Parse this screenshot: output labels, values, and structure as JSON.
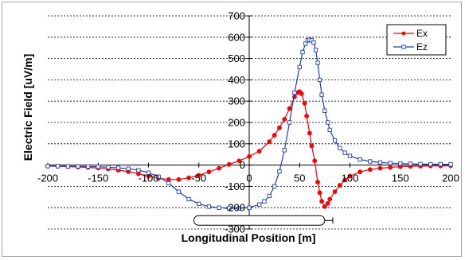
{
  "chart_data": {
    "type": "line",
    "xlabel": "Longitudinal Position [m]",
    "ylabel": "Electric Field [uV/m]",
    "xlim": [
      -200,
      200
    ],
    "ylim": [
      -300,
      700
    ],
    "x_ticks": [
      "-200",
      "-150",
      "-100",
      "-50",
      "0",
      "50",
      "100",
      "150",
      "200"
    ],
    "y_ticks": [
      "-300",
      "-200",
      "-100",
      "0",
      "100",
      "200",
      "300",
      "400",
      "500",
      "600",
      "700"
    ],
    "grid": "horizontal-dashed",
    "legend_position": "top-right",
    "colors": {
      "Ex": "#ff0000",
      "Ez": "#1f3fbf"
    },
    "series": [
      {
        "name": "Ex",
        "marker": "filled-circle",
        "x": [
          -200,
          -190,
          -180,
          -170,
          -160,
          -150,
          -140,
          -130,
          -120,
          -110,
          -100,
          -90,
          -80,
          -70,
          -60,
          -50,
          -40,
          -30,
          -20,
          -10,
          0,
          10,
          20,
          25,
          30,
          35,
          40,
          45,
          48,
          50,
          52,
          55,
          57,
          60,
          62,
          65,
          68,
          70,
          72,
          75,
          78,
          80,
          85,
          90,
          95,
          100,
          110,
          120,
          130,
          140,
          150,
          160,
          170,
          180,
          190,
          200
        ],
        "values": [
          -5,
          -6,
          -7,
          -9,
          -11,
          -14,
          -18,
          -24,
          -31,
          -41,
          -52,
          -62,
          -68,
          -68,
          -60,
          -48,
          -32,
          -15,
          3,
          20,
          40,
          65,
          110,
          140,
          175,
          215,
          265,
          320,
          340,
          345,
          335,
          290,
          230,
          150,
          90,
          20,
          -80,
          -130,
          -170,
          -195,
          -180,
          -160,
          -125,
          -95,
          -70,
          -52,
          -32,
          -21,
          -15,
          -11,
          -8,
          -6,
          -5,
          -4,
          -4,
          -3
        ]
      },
      {
        "name": "Ez",
        "marker": "hollow-square",
        "x": [
          -200,
          -190,
          -180,
          -170,
          -160,
          -150,
          -140,
          -130,
          -120,
          -110,
          -100,
          -90,
          -80,
          -70,
          -60,
          -50,
          -40,
          -30,
          -20,
          -10,
          0,
          10,
          15,
          20,
          25,
          30,
          35,
          40,
          45,
          50,
          53,
          56,
          58,
          60,
          62,
          64,
          66,
          68,
          70,
          72,
          75,
          78,
          80,
          85,
          90,
          95,
          100,
          110,
          120,
          130,
          140,
          150,
          160,
          170,
          180,
          190,
          200
        ],
        "values": [
          -5,
          -5,
          -6,
          -6,
          -7,
          -8,
          -10,
          -13,
          -17,
          -24,
          -36,
          -55,
          -85,
          -125,
          -160,
          -182,
          -195,
          -200,
          -203,
          -203,
          -200,
          -185,
          -170,
          -145,
          -100,
          -30,
          70,
          200,
          340,
          460,
          530,
          570,
          585,
          588,
          585,
          575,
          540,
          480,
          400,
          330,
          255,
          200,
          165,
          115,
          80,
          58,
          43,
          26,
          17,
          12,
          9,
          7,
          6,
          5,
          4,
          4,
          3
        ]
      }
    ],
    "annotations": []
  }
}
